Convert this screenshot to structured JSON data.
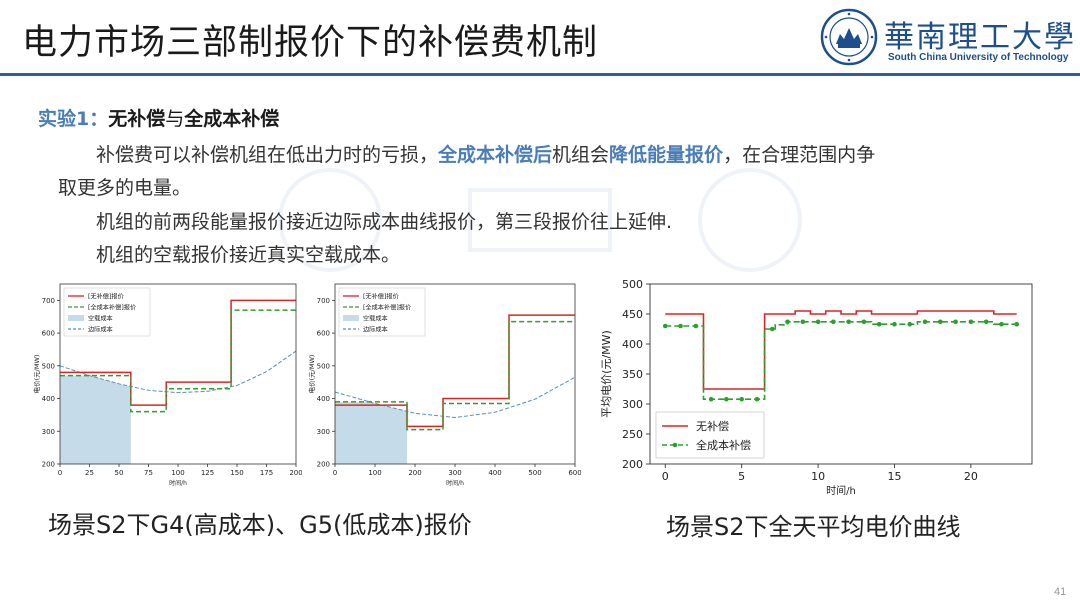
{
  "slide": {
    "title": "电力市场三部制报价下的补偿费机制",
    "logo_cn": "華南理工大學",
    "logo_en": "South China University of Technology",
    "subtitle_prefix": "实验1：",
    "subtitle_a": "无补偿",
    "subtitle_mid": "与",
    "subtitle_b": "全成本补偿",
    "p1_a": "补偿费可以补偿机组在低出力时的亏损，",
    "p1_b": "全成本补偿后",
    "p1_c": "机组会",
    "p1_d": "降低能量报价",
    "p1_e": "，在合理范围内争",
    "p1_f": "取更多的电量。",
    "p2": "机组的前两段能量报价接近边际成本曲线报价，第三段报价往上延伸.",
    "p3": "机组的空载报价接近真实空载成本。",
    "caption_left": "场景S2下G4(高成本)、G5(低成本)报价",
    "caption_right": "场景S2下全天平均电价曲线",
    "page_number": "41"
  },
  "colors": {
    "no_comp": "#d62728",
    "full_comp": "#2ca02c",
    "marginal": "#5b8fb5",
    "noload": "#c6dbe9",
    "accent": "#4a7db8"
  },
  "chart_data": [
    {
      "type": "line",
      "title": "",
      "xlabel": "时间/h",
      "ylabel": "电价(元/MW)",
      "xlim": [
        0,
        200
      ],
      "ylim": [
        200,
        750
      ],
      "xticks": [
        0,
        25,
        50,
        75,
        100,
        125,
        150,
        175,
        200
      ],
      "yticks": [
        200,
        300,
        400,
        500,
        600,
        700
      ],
      "legend": [
        "[无补偿]报价",
        "[全成本补偿]报价",
        "空载成本",
        "边际成本"
      ],
      "legend_position": "top-left",
      "no_comp_steps": [
        [
          0,
          480
        ],
        [
          60,
          480
        ],
        [
          60,
          380
        ],
        [
          90,
          380
        ],
        [
          90,
          450
        ],
        [
          145,
          450
        ],
        [
          145,
          700
        ],
        [
          200,
          700
        ]
      ],
      "full_comp_steps": [
        [
          0,
          470
        ],
        [
          60,
          470
        ],
        [
          60,
          360
        ],
        [
          90,
          360
        ],
        [
          90,
          430
        ],
        [
          145,
          430
        ],
        [
          145,
          670
        ],
        [
          200,
          670
        ]
      ],
      "noload_fill": {
        "x_end": 60,
        "y": 470
      },
      "marginal_curve": [
        [
          0,
          500
        ],
        [
          25,
          470
        ],
        [
          50,
          445
        ],
        [
          75,
          425
        ],
        [
          100,
          418
        ],
        [
          125,
          422
        ],
        [
          150,
          440
        ],
        [
          175,
          482
        ],
        [
          200,
          545
        ]
      ]
    },
    {
      "type": "line",
      "title": "",
      "xlabel": "时间/h",
      "ylabel": "电价(元/MW)",
      "xlim": [
        0,
        600
      ],
      "ylim": [
        200,
        750
      ],
      "xticks": [
        0,
        100,
        200,
        300,
        400,
        500,
        600
      ],
      "yticks": [
        200,
        300,
        400,
        500,
        600,
        700
      ],
      "legend": [
        "[无补偿]报价",
        "[全成本补偿]报价",
        "空载成本",
        "边际成本"
      ],
      "legend_position": "top-left",
      "no_comp_steps": [
        [
          0,
          380
        ],
        [
          180,
          380
        ],
        [
          180,
          315
        ],
        [
          270,
          315
        ],
        [
          270,
          400
        ],
        [
          435,
          400
        ],
        [
          435,
          655
        ],
        [
          600,
          655
        ]
      ],
      "full_comp_steps": [
        [
          0,
          390
        ],
        [
          180,
          390
        ],
        [
          180,
          305
        ],
        [
          270,
          305
        ],
        [
          270,
          385
        ],
        [
          435,
          385
        ],
        [
          435,
          635
        ],
        [
          600,
          635
        ]
      ],
      "noload_fill": {
        "x_end": 180,
        "y": 390
      },
      "marginal_curve": [
        [
          0,
          420
        ],
        [
          100,
          385
        ],
        [
          200,
          355
        ],
        [
          300,
          342
        ],
        [
          400,
          358
        ],
        [
          500,
          398
        ],
        [
          600,
          465
        ]
      ]
    },
    {
      "type": "line",
      "title": "",
      "xlabel": "时间/h",
      "ylabel": "平均电价(元/MW)",
      "xlim": [
        -1,
        24
      ],
      "ylim": [
        200,
        500
      ],
      "xticks": [
        0,
        5,
        10,
        15,
        20
      ],
      "yticks": [
        200,
        250,
        300,
        350,
        400,
        450,
        500
      ],
      "legend_position": "bottom-left",
      "series": [
        {
          "name": "无补偿",
          "style": "step",
          "values": [
            [
              0,
              450
            ],
            [
              2.5,
              450
            ],
            [
              2.5,
              325
            ],
            [
              6.5,
              325
            ],
            [
              6.5,
              450
            ],
            [
              8.5,
              450
            ],
            [
              8.5,
              455
            ],
            [
              9.5,
              455
            ],
            [
              9.5,
              450
            ],
            [
              10.5,
              450
            ],
            [
              10.5,
              455
            ],
            [
              11.5,
              455
            ],
            [
              11.5,
              450
            ],
            [
              12.5,
              450
            ],
            [
              12.5,
              455
            ],
            [
              13.5,
              455
            ],
            [
              13.5,
              450
            ],
            [
              16.5,
              450
            ],
            [
              16.5,
              455
            ],
            [
              21.5,
              455
            ],
            [
              21.5,
              450
            ],
            [
              23,
              450
            ]
          ]
        },
        {
          "name": "全成本补偿",
          "style": "step-dashed-markers",
          "values": [
            [
              0,
              430
            ],
            [
              2.5,
              430
            ],
            [
              2.5,
              308
            ],
            [
              6.5,
              308
            ],
            [
              6.5,
              425
            ],
            [
              7.2,
              425
            ],
            [
              7.2,
              432
            ],
            [
              8,
              432
            ],
            [
              8,
              437
            ],
            [
              13.5,
              437
            ],
            [
              13.5,
              433
            ],
            [
              16.5,
              433
            ],
            [
              16.5,
              437
            ],
            [
              21.5,
              437
            ],
            [
              21.5,
              433
            ],
            [
              23,
              433
            ]
          ],
          "markers": [
            [
              0,
              430
            ],
            [
              1,
              430
            ],
            [
              2,
              430
            ],
            [
              3,
              308
            ],
            [
              4,
              308
            ],
            [
              5,
              308
            ],
            [
              6,
              308
            ],
            [
              7,
              425
            ],
            [
              8,
              437
            ],
            [
              9,
              437
            ],
            [
              10,
              437
            ],
            [
              11,
              437
            ],
            [
              12,
              437
            ],
            [
              13,
              437
            ],
            [
              14,
              433
            ],
            [
              15,
              433
            ],
            [
              16,
              433
            ],
            [
              17,
              437
            ],
            [
              18,
              437
            ],
            [
              19,
              437
            ],
            [
              20,
              437
            ],
            [
              21,
              437
            ],
            [
              22,
              433
            ],
            [
              23,
              433
            ]
          ]
        }
      ]
    }
  ]
}
